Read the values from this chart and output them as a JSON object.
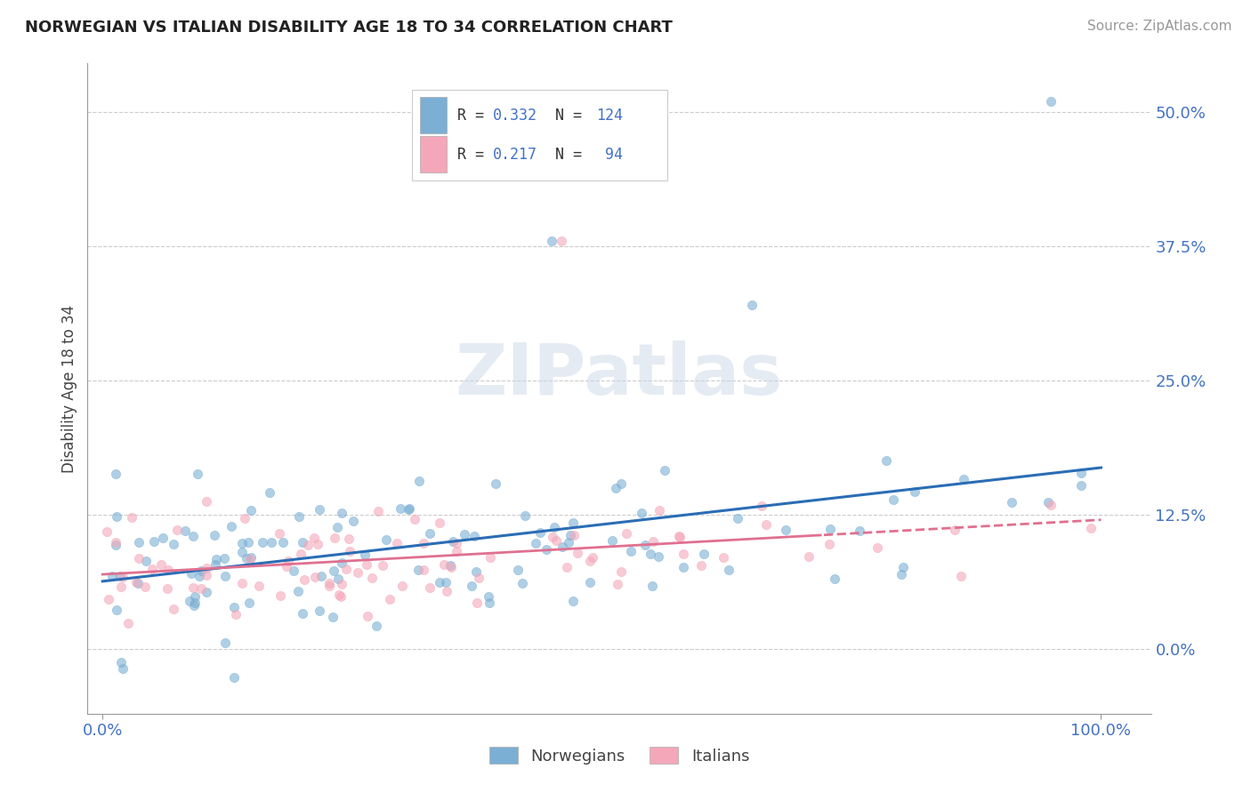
{
  "title": "NORWEGIAN VS ITALIAN DISABILITY AGE 18 TO 34 CORRELATION CHART",
  "source": "Source: ZipAtlas.com",
  "ylabel": "Disability Age 18 to 34",
  "legend_norwegian": "Norwegians",
  "legend_italian": "Italians",
  "norwegian_color": "#7bafd4",
  "italian_color": "#f4a7b9",
  "norwegian_line_color": "#2a6db5",
  "italian_line_color": "#e07090",
  "norwegian_R": "0.332",
  "norwegian_N": "124",
  "italian_R": "0.217",
  "italian_N": "94",
  "watermark_text": "ZIPatlas",
  "background_color": "#ffffff",
  "grid_color": "#cccccc",
  "title_color": "#222222",
  "tick_color": "#4472c4",
  "axis_color": "#999999",
  "source_color": "#999999",
  "ylabel_color": "#444444",
  "legend_label_color": "#444444"
}
